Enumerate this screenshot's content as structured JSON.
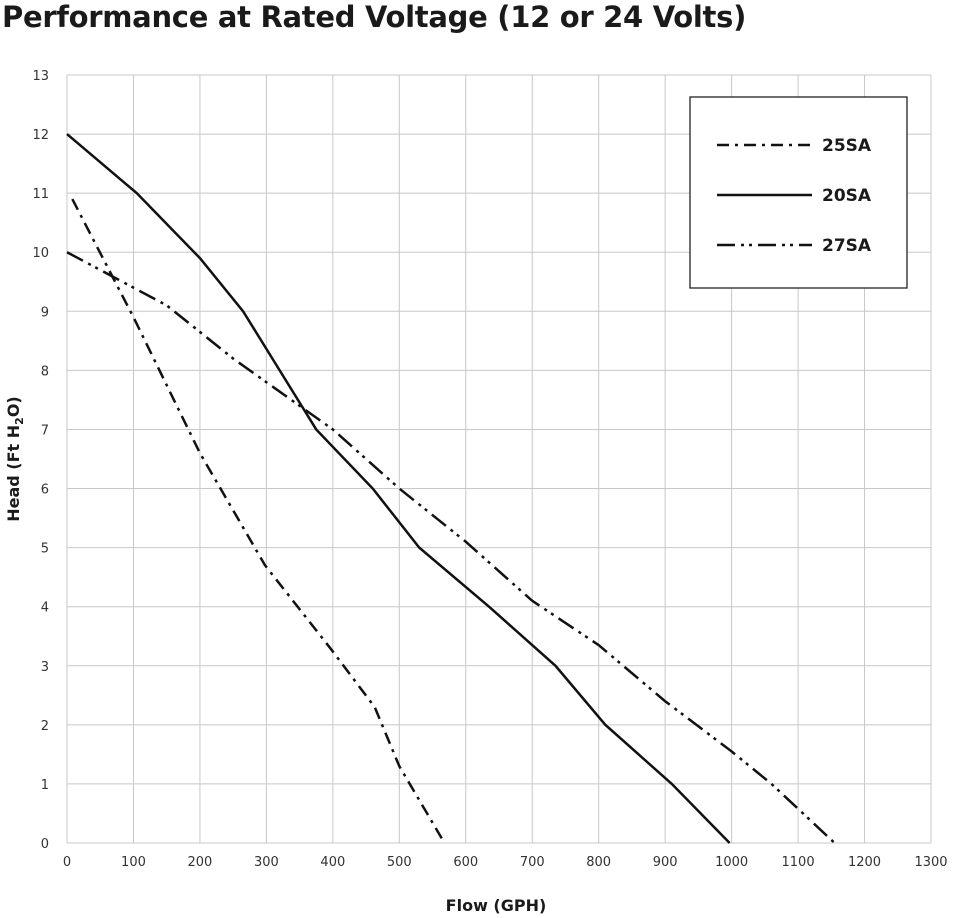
{
  "chart_data": {
    "type": "line",
    "title": "Performance at Rated Voltage (12 or 24 Volts)",
    "xlabel": "Flow (GPH)",
    "ylabel": "Head (Ft H2O)",
    "xlim": [
      0,
      1300
    ],
    "ylim": [
      0,
      13
    ],
    "xticks": [
      "0",
      "100",
      "200",
      "300",
      "400",
      "500",
      "600",
      "700",
      "800",
      "900",
      "1000",
      "1100",
      "1200",
      "1300"
    ],
    "yticks": [
      "0",
      "1",
      "2",
      "3",
      "4",
      "5",
      "6",
      "7",
      "8",
      "9",
      "10",
      "11",
      "12",
      "13"
    ],
    "grid": true,
    "legend_position": "top-right",
    "series": [
      {
        "name": "25SA",
        "style": "dash-dot",
        "color": "#111111",
        "points": [
          [
            8,
            10.9
          ],
          [
            100,
            8.9
          ],
          [
            200,
            6.6
          ],
          [
            298,
            4.7
          ],
          [
            396,
            3.3
          ],
          [
            463,
            2.3
          ],
          [
            500,
            1.3
          ],
          [
            568,
            0
          ]
        ]
      },
      {
        "name": "20SA",
        "style": "solid",
        "color": "#111111",
        "points": [
          [
            0,
            12
          ],
          [
            105,
            11
          ],
          [
            200,
            9.9
          ],
          [
            265,
            9
          ],
          [
            320,
            8
          ],
          [
            375,
            7
          ],
          [
            460,
            6
          ],
          [
            530,
            5
          ],
          [
            635,
            4
          ],
          [
            735,
            3
          ],
          [
            810,
            2
          ],
          [
            910,
            1
          ],
          [
            997,
            0
          ]
        ]
      },
      {
        "name": "27SA",
        "style": "dash-dot-dot",
        "color": "#111111",
        "points": [
          [
            0,
            10
          ],
          [
            150,
            9.1
          ],
          [
            250,
            8.2
          ],
          [
            400,
            7
          ],
          [
            500,
            6
          ],
          [
            600,
            5.1
          ],
          [
            700,
            4.1
          ],
          [
            800,
            3.35
          ],
          [
            900,
            2.4
          ],
          [
            1000,
            1.55
          ],
          [
            1060,
            1
          ],
          [
            1155,
            0
          ]
        ]
      }
    ]
  }
}
